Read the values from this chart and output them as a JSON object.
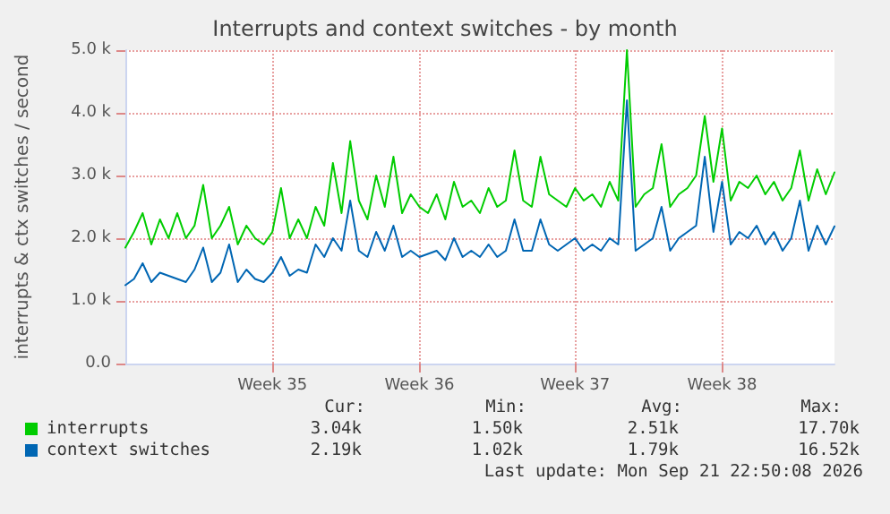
{
  "chart_data": {
    "type": "line",
    "title": "Interrupts and context switches - by month",
    "ylabel": "interrupts & ctx switches / second",
    "categories": [
      null,
      null,
      null,
      null,
      null,
      null,
      null,
      null,
      null,
      null,
      null,
      null,
      null,
      null,
      null,
      null,
      null,
      "Week 35",
      null,
      null,
      null,
      null,
      null,
      null,
      null,
      null,
      null,
      null,
      null,
      null,
      null,
      null,
      null,
      null,
      "Week 36",
      null,
      null,
      null,
      null,
      null,
      null,
      null,
      null,
      null,
      null,
      null,
      null,
      null,
      null,
      null,
      null,
      null,
      "Week 37",
      null,
      null,
      null,
      null,
      null,
      null,
      null,
      null,
      null,
      null,
      null,
      null,
      null,
      null,
      null,
      null,
      "Week 38",
      null,
      null,
      null,
      null,
      null,
      null,
      null,
      null,
      null,
      null,
      null,
      null,
      null
    ],
    "series": [
      {
        "name": "interrupts",
        "color": "#00cc00",
        "values": [
          1850,
          2100,
          2400,
          1900,
          2300,
          2000,
          2400,
          2000,
          2200,
          2850,
          2000,
          2200,
          2500,
          1900,
          2200,
          2000,
          1900,
          2100,
          2800,
          2000,
          2300,
          2000,
          2500,
          2200,
          3200,
          2400,
          3550,
          2600,
          2300,
          3000,
          2500,
          3300,
          2400,
          2700,
          2500,
          2400,
          2700,
          2300,
          2900,
          2500,
          2600,
          2400,
          2800,
          2500,
          2600,
          3400,
          2600,
          2500,
          3300,
          2700,
          2600,
          2500,
          2800,
          2600,
          2700,
          2500,
          2900,
          2600,
          5000,
          2500,
          2700,
          2800,
          3500,
          2500,
          2700,
          2800,
          3000,
          3950,
          2900,
          3750,
          2600,
          2900,
          2800,
          3000,
          2700,
          2900,
          2600,
          2800,
          3400,
          2600,
          3100,
          2700,
          3050
        ]
      },
      {
        "name": "context switches",
        "color": "#0066b3",
        "values": [
          1250,
          1350,
          1600,
          1300,
          1450,
          1400,
          1350,
          1300,
          1500,
          1850,
          1300,
          1450,
          1900,
          1300,
          1500,
          1350,
          1300,
          1450,
          1700,
          1400,
          1500,
          1450,
          1900,
          1700,
          2000,
          1800,
          2600,
          1800,
          1700,
          2100,
          1800,
          2200,
          1700,
          1800,
          1700,
          1750,
          1800,
          1650,
          2000,
          1700,
          1800,
          1700,
          1900,
          1700,
          1800,
          2300,
          1800,
          1800,
          2300,
          1900,
          1800,
          1900,
          2000,
          1800,
          1900,
          1800,
          2000,
          1900,
          4200,
          1800,
          1900,
          2000,
          2500,
          1800,
          2000,
          2100,
          2200,
          3300,
          2100,
          2900,
          1900,
          2100,
          2000,
          2200,
          1900,
          2100,
          1800,
          2000,
          2600,
          1800,
          2200,
          1900,
          2190
        ]
      }
    ],
    "ylim": [
      0,
      5000
    ],
    "yticks": [
      {
        "value": 0,
        "label": "0.0"
      },
      {
        "value": 1000,
        "label": "1.0 k"
      },
      {
        "value": 2000,
        "label": "2.0 k"
      },
      {
        "value": 3000,
        "label": "3.0 k"
      },
      {
        "value": 4000,
        "label": "4.0 k"
      },
      {
        "value": 5000,
        "label": "5.0 k"
      }
    ],
    "grid": true,
    "legend": "bottom",
    "marker": "none",
    "line_style": "solid",
    "annotations": [
      "Cur:",
      "Min:",
      "Avg:",
      "Max:",
      "3.04k",
      "1.50k",
      "2.51k",
      "17.70k",
      "2.19k",
      "1.02k",
      "1.79k",
      "16.52k",
      "Last update: Mon Sep 21 22:50:08 2026"
    ]
  }
}
